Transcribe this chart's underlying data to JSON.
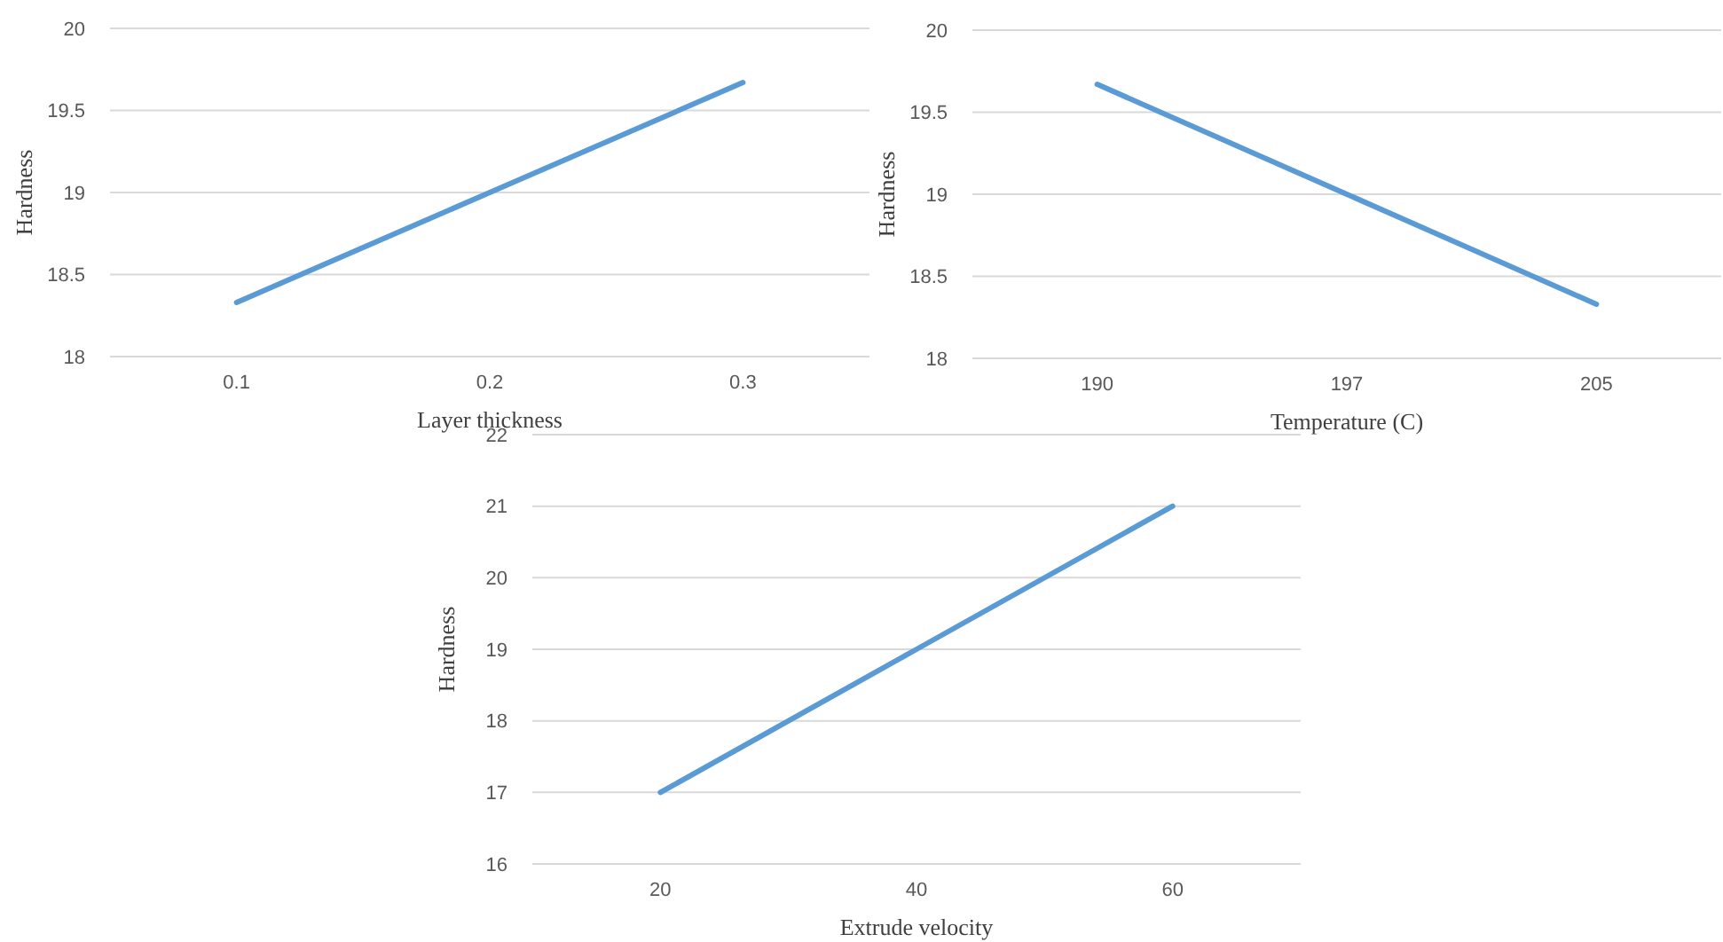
{
  "chart_data": [
    {
      "type": "line",
      "xlabel": "Layer thickness",
      "ylabel": "Hardness",
      "categories": [
        "0.1",
        "0.2",
        "0.3"
      ],
      "series": [
        {
          "color": "#5b9bd5",
          "values": [
            18.33,
            19.0,
            19.67
          ]
        }
      ],
      "ylim": [
        18,
        20
      ],
      "yticks": [
        18,
        18.5,
        19,
        19.5,
        20
      ],
      "grid": "y"
    },
    {
      "type": "line",
      "xlabel": "Temperature (C)",
      "ylabel": "Hardness",
      "categories": [
        "190",
        "197",
        "205"
      ],
      "series": [
        {
          "color": "#5b9bd5",
          "values": [
            19.67,
            19.0,
            18.33
          ]
        }
      ],
      "ylim": [
        18,
        20
      ],
      "yticks": [
        18,
        18.5,
        19,
        19.5,
        20
      ],
      "grid": "y"
    },
    {
      "type": "line",
      "xlabel": "Extrude velocity",
      "ylabel": "Hardness",
      "categories": [
        "20",
        "40",
        "60"
      ],
      "series": [
        {
          "color": "#5b9bd5",
          "values": [
            17,
            19,
            21
          ]
        }
      ],
      "ylim": [
        16,
        22
      ],
      "yticks": [
        16,
        17,
        18,
        19,
        20,
        21,
        22
      ],
      "grid": "y"
    }
  ]
}
